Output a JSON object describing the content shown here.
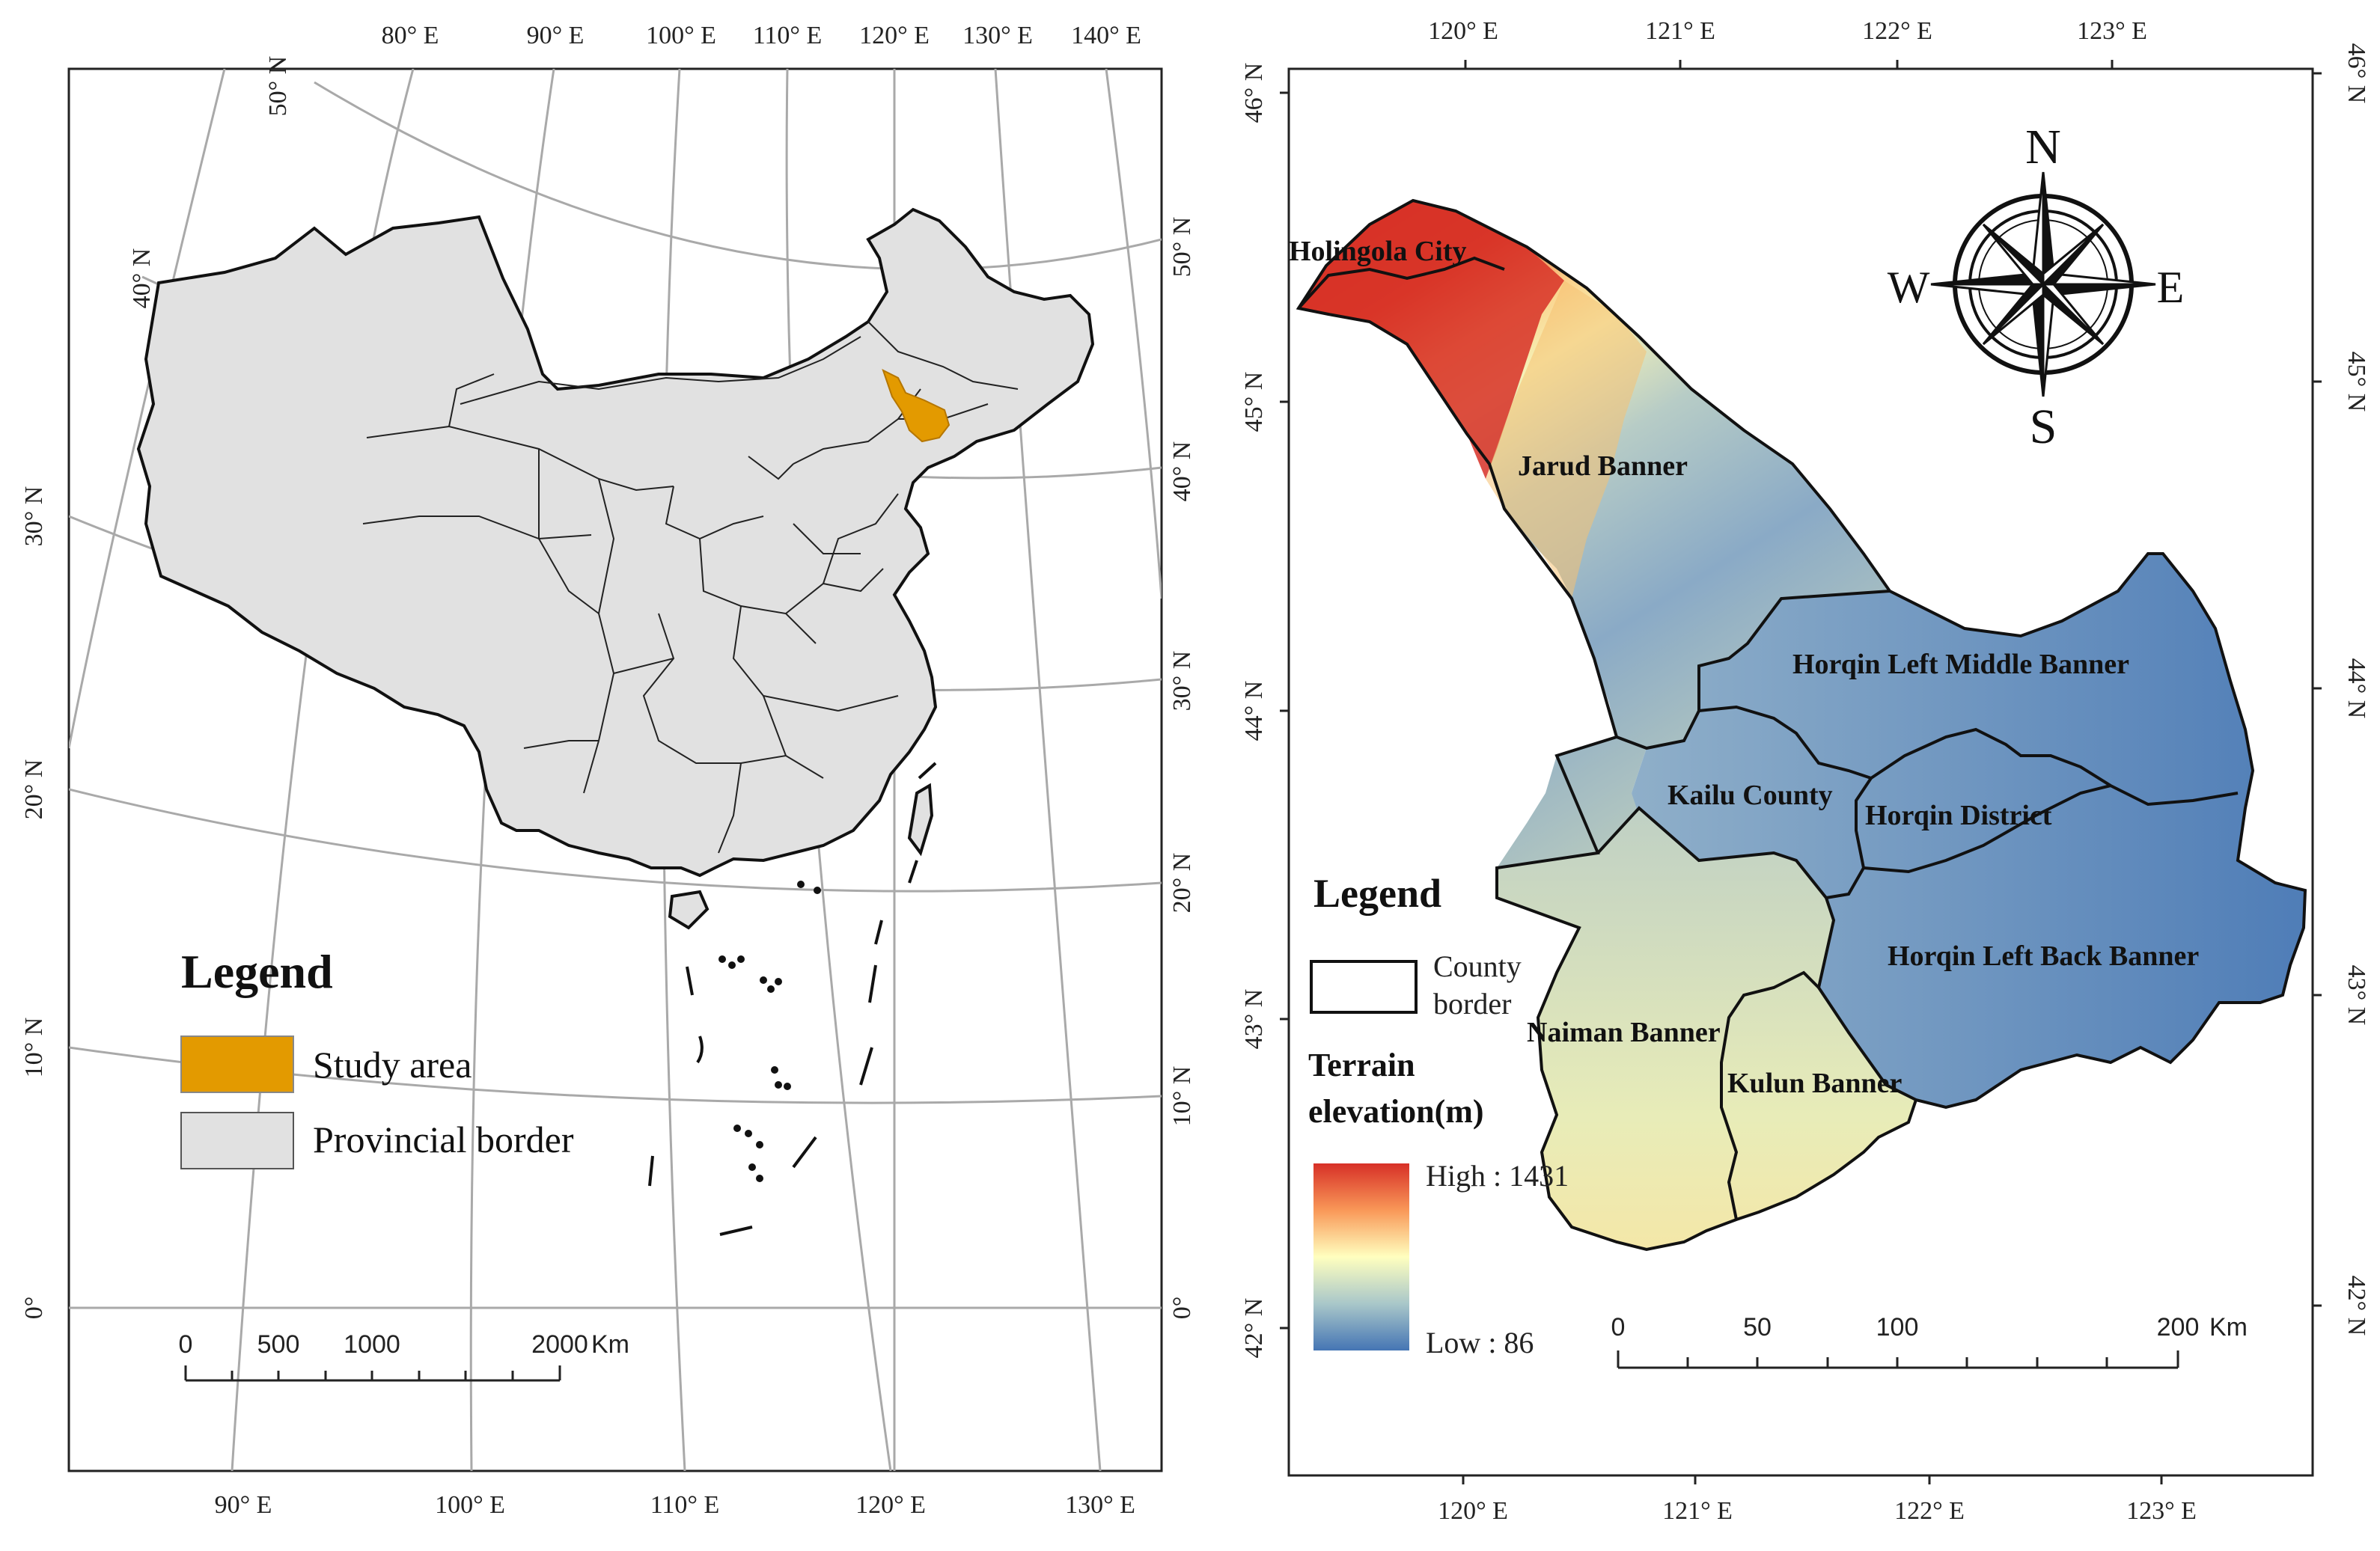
{
  "colors": {
    "study_area": "#E39A00",
    "province_fill": "#E1E1E1",
    "grid": "#A9A9A9",
    "elev_high": "#D73027",
    "elev_mid": "#FFFFBF",
    "elev_low": "#4575B4"
  },
  "left_map": {
    "top_labels": [
      "80° E",
      "90° E",
      "100° E",
      "110° E",
      "120° E",
      "130° E",
      "140° E"
    ],
    "bottom_labels": [
      "90° E",
      "100° E",
      "110° E",
      "120° E",
      "130° E"
    ],
    "left_labels": [
      "50° N",
      "40° N",
      "30° N",
      "20° N",
      "10° N",
      "0°"
    ],
    "right_labels": [
      "50° N",
      "40° N",
      "30° N",
      "20° N",
      "10° N",
      "0°"
    ],
    "legend": {
      "title": "Legend",
      "items": [
        {
          "label": "Study area",
          "color": "#E39A00"
        },
        {
          "label": "Provincial border",
          "color": "#E1E1E1"
        }
      ]
    },
    "scalebar": {
      "ticks": [
        "0",
        "500",
        "1000",
        "2000"
      ],
      "unit": "Km"
    }
  },
  "right_map": {
    "top_labels": [
      "120° E",
      "121° E",
      "122° E",
      "123° E"
    ],
    "bottom_labels": [
      "120° E",
      "121° E",
      "122° E",
      "123° E"
    ],
    "left_labels": [
      "46° N",
      "45° N",
      "44° N",
      "43° N",
      "42° N"
    ],
    "right_labels": [
      "46° N",
      "45° N",
      "44° N",
      "43° N",
      "42° N"
    ],
    "counties": [
      "Holingola City",
      "Jarud Banner",
      "Horqin Left Middle Banner",
      "Kailu County",
      "Horqin District",
      "Horqin Left Back Banner",
      "Naiman Banner",
      "Kulun Banner"
    ],
    "compass": {
      "n": "N",
      "s": "S",
      "e": "E",
      "w": "W"
    },
    "legend": {
      "title": "Legend",
      "county_border_line1": "County",
      "county_border_line2": "border",
      "elevation_line1": "Terrain",
      "elevation_line2": "elevation(m)",
      "high": "High : 1431",
      "low": "Low : 86"
    },
    "scalebar": {
      "ticks": [
        "0",
        "50",
        "100",
        "200"
      ],
      "unit": "Km"
    }
  }
}
